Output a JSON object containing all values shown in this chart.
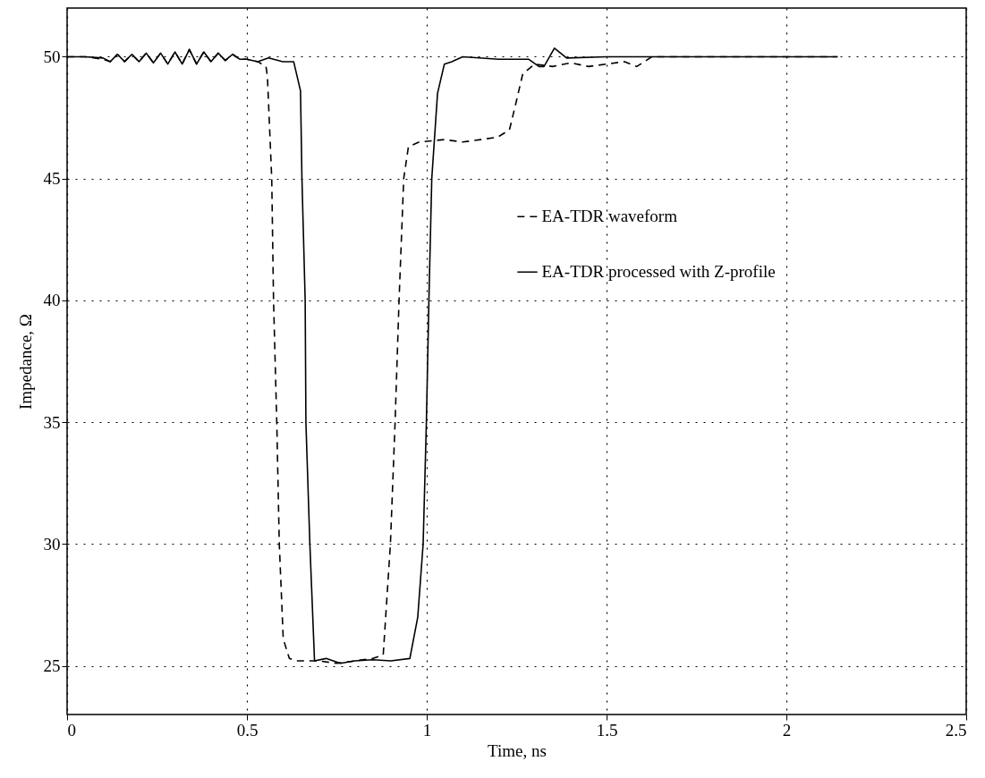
{
  "chart_data": {
    "type": "line",
    "xlabel": "Time, ns",
    "ylabel": "Impedance, Ω",
    "xlim": [
      0,
      2.5
    ],
    "ylim": [
      23,
      52
    ],
    "xticks": [
      0,
      0.5,
      1,
      1.5,
      2,
      2.5
    ],
    "yticks": [
      25,
      30,
      35,
      40,
      45,
      50
    ],
    "grid": true,
    "legend": "right",
    "series": [
      {
        "name": "EA-TDR waveform",
        "color": "#000000",
        "line_style": "dashed",
        "x": [
          0,
          0.05,
          0.1,
          0.12,
          0.14,
          0.16,
          0.18,
          0.2,
          0.22,
          0.24,
          0.26,
          0.28,
          0.3,
          0.32,
          0.34,
          0.36,
          0.38,
          0.4,
          0.42,
          0.44,
          0.46,
          0.48,
          0.5,
          0.53,
          0.553,
          0.557,
          0.569,
          0.574,
          0.583,
          0.59,
          0.601,
          0.618,
          0.636,
          0.66,
          0.7,
          0.75,
          0.8,
          0.85,
          0.879,
          0.899,
          0.912,
          0.923,
          0.936,
          0.949,
          0.979,
          1.05,
          1.1,
          1.15,
          1.197,
          1.23,
          1.248,
          1.267,
          1.3,
          1.35,
          1.4,
          1.45,
          1.5,
          1.55,
          1.584,
          1.626,
          1.8,
          2.0,
          2.14
        ],
        "values": [
          50,
          50,
          49.9,
          49.8,
          50.1,
          49.8,
          50.1,
          49.8,
          50.15,
          49.75,
          50.15,
          49.7,
          50.2,
          49.7,
          50.3,
          49.7,
          50.2,
          49.8,
          50.15,
          49.85,
          50.1,
          49.9,
          49.9,
          49.8,
          49.6,
          49.2,
          45,
          40,
          35,
          30,
          26.1,
          25.3,
          25.2,
          25.2,
          25.2,
          25.1,
          25.2,
          25.3,
          25.45,
          30,
          35,
          40,
          45,
          46.3,
          46.5,
          46.6,
          46.5,
          46.6,
          46.7,
          47,
          48.1,
          49.3,
          49.7,
          49.6,
          49.75,
          49.6,
          49.7,
          49.8,
          49.6,
          50,
          50,
          50,
          50
        ]
      },
      {
        "name": "EA-TDR processed with Z-profile",
        "color": "#000000",
        "line_style": "solid",
        "x": [
          0,
          0.05,
          0.1,
          0.12,
          0.14,
          0.16,
          0.18,
          0.2,
          0.22,
          0.24,
          0.26,
          0.28,
          0.3,
          0.32,
          0.34,
          0.36,
          0.38,
          0.4,
          0.42,
          0.44,
          0.46,
          0.48,
          0.5,
          0.53,
          0.56,
          0.6,
          0.63,
          0.649,
          0.653,
          0.662,
          0.664,
          0.675,
          0.688,
          0.72,
          0.76,
          0.8,
          0.85,
          0.9,
          0.953,
          0.975,
          0.99,
          0.999,
          1.006,
          1.014,
          1.03,
          1.049,
          1.07,
          1.1,
          1.2,
          1.283,
          1.312,
          1.326,
          1.355,
          1.389,
          1.5,
          1.7,
          1.9,
          2.143
        ],
        "values": [
          50,
          50,
          49.95,
          49.8,
          50.1,
          49.8,
          50.1,
          49.8,
          50.15,
          49.75,
          50.15,
          49.7,
          50.2,
          49.7,
          50.3,
          49.7,
          50.2,
          49.8,
          50.15,
          49.85,
          50.1,
          49.9,
          49.9,
          49.8,
          49.95,
          49.8,
          49.8,
          48.6,
          45,
          40,
          35,
          30,
          25.2,
          25.3,
          25.1,
          25.2,
          25.25,
          25.2,
          25.3,
          27,
          30,
          35,
          40,
          45,
          48.5,
          49.7,
          49.8,
          50,
          49.9,
          49.9,
          49.6,
          49.6,
          50.35,
          49.95,
          50,
          50,
          50,
          50
        ]
      }
    ]
  }
}
